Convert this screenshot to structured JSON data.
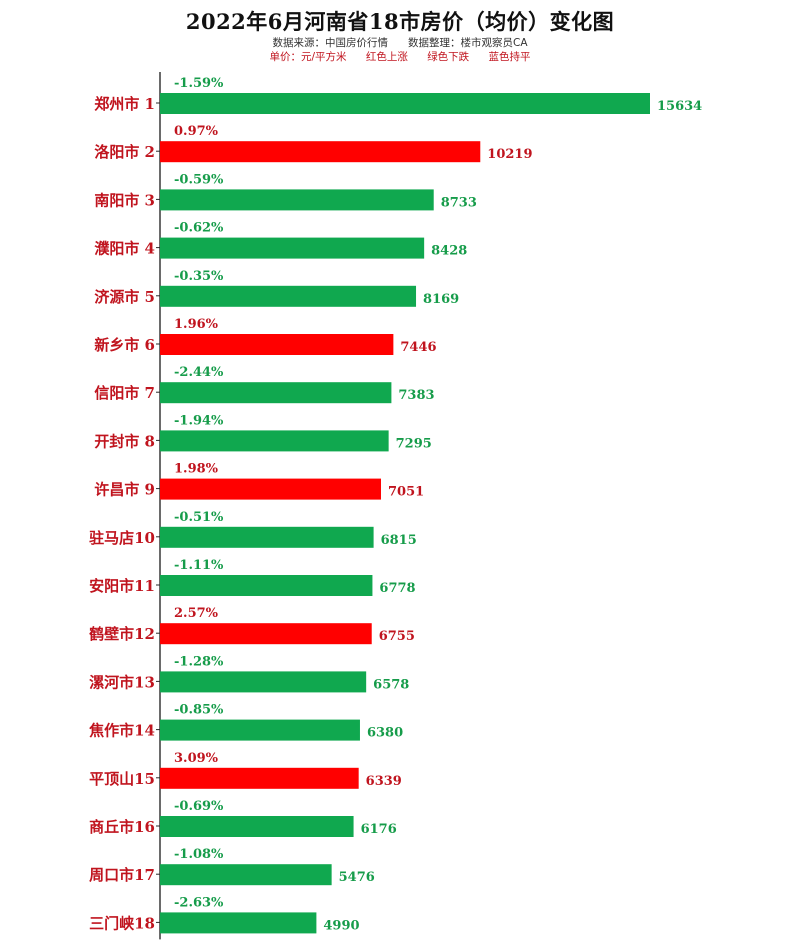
{
  "header": {
    "title": "2022年6月河南省18市房价（均价）变化图",
    "source": "数据来源：中国房价行情",
    "compiler": "数据整理：楼市观察员CA",
    "unit": "单价：元/平方米",
    "legend_up": "红色上涨",
    "legend_down": "绿色下跌",
    "legend_flat": "蓝色持平"
  },
  "colors": {
    "up": "#ff0000",
    "down": "#10a84f",
    "label_up": "#c0141e",
    "label_down": "#169c4a",
    "category": "#c0141e",
    "axis": "#2a2a2a"
  },
  "chart_data": {
    "type": "bar",
    "orientation": "horizontal",
    "title": "2022年6月河南省18市房价（均价）变化图",
    "categories": [
      "郑州市 1",
      "洛阳市 2",
      "南阳市 3",
      "濮阳市 4",
      "济源市 5",
      "新乡市 6",
      "信阳市 7",
      "开封市 8",
      "许昌市 9",
      "驻马店10",
      "安阳市11",
      "鹤壁市12",
      "漯河市13",
      "焦作市14",
      "平顶山15",
      "商丘市16",
      "周口市17",
      "三门峡18"
    ],
    "values": [
      15634,
      10219,
      8733,
      8428,
      8169,
      7446,
      7383,
      7295,
      7051,
      6815,
      6778,
      6755,
      6578,
      6380,
      6339,
      6176,
      5476,
      4990
    ],
    "changes": [
      "-1.59%",
      "0.97%",
      "-0.59%",
      "-0.62%",
      "-0.35%",
      "1.96%",
      "-2.44%",
      "-1.94%",
      "1.98%",
      "-0.51%",
      "-1.11%",
      "2.57%",
      "-1.28%",
      "-0.85%",
      "3.09%",
      "-0.69%",
      "-1.08%",
      "-2.63%"
    ],
    "xlim": [
      0,
      15634
    ],
    "grid": false,
    "legend": "none"
  }
}
